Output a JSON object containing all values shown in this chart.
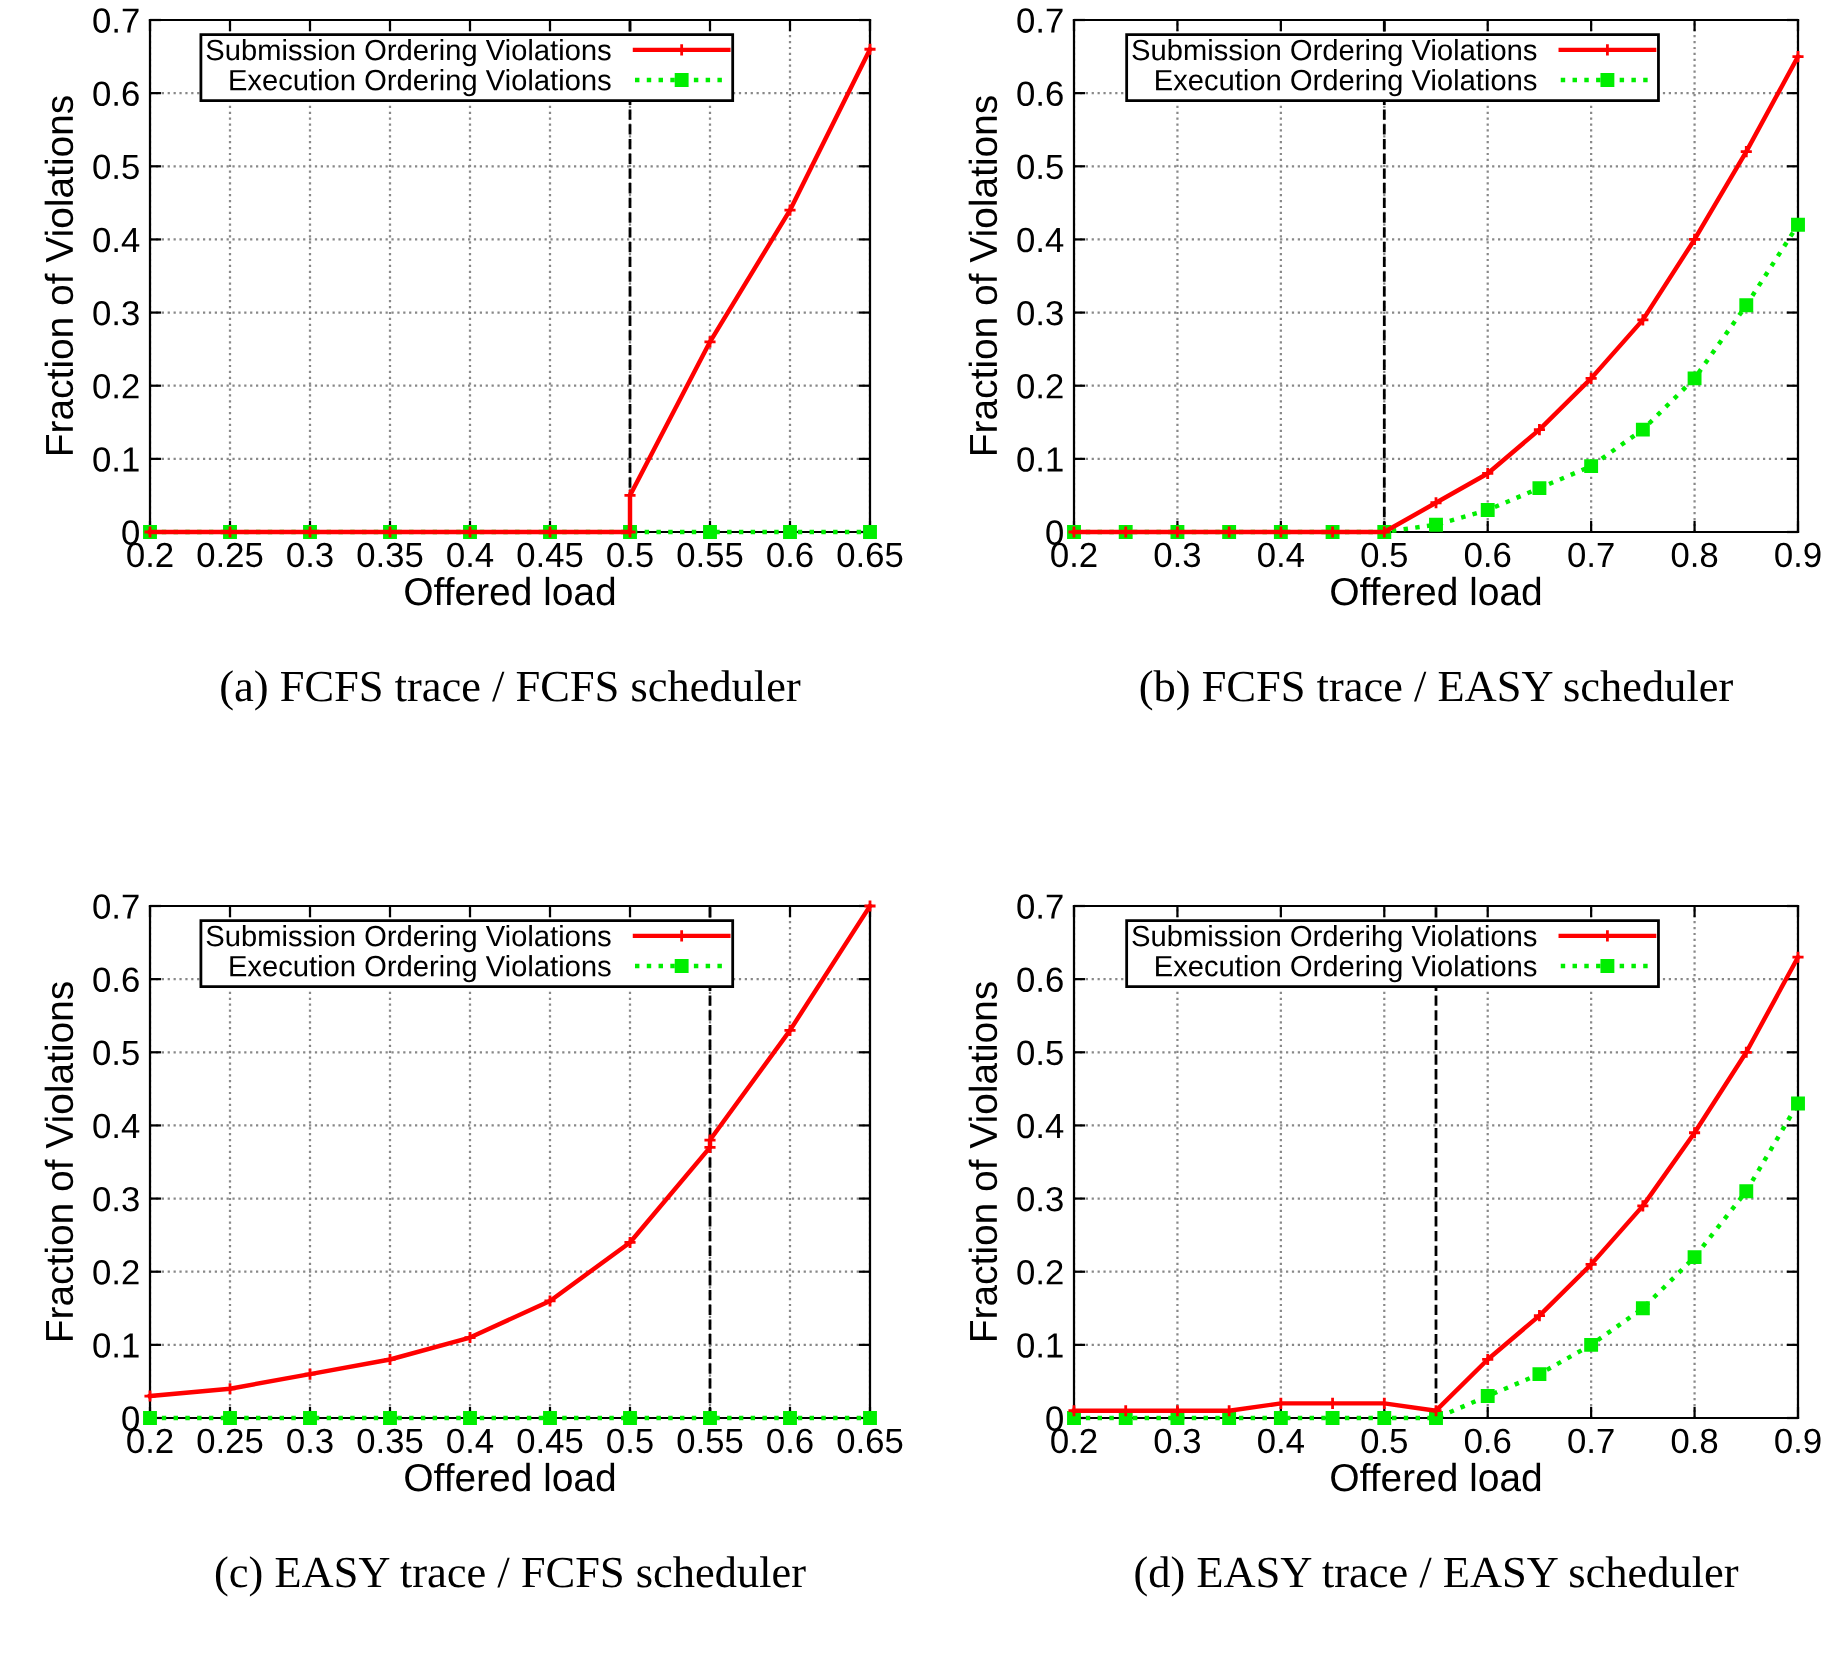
{
  "chart_data": [
    {
      "type": "line",
      "title": "(a) FCFS trace / FCFS scheduler",
      "xlabel": "Offered load",
      "ylabel": "Fraction of Violations",
      "xlim": [
        0.2,
        0.65
      ],
      "ylim": [
        0,
        0.7
      ],
      "xticks": [
        0.2,
        0.25,
        0.3,
        0.35,
        0.4,
        0.45,
        0.5,
        0.55,
        0.6,
        0.65
      ],
      "yticks": [
        0,
        0.1,
        0.2,
        0.3,
        0.4,
        0.5,
        0.6,
        0.7
      ],
      "grid": true,
      "legend": "top",
      "ref_lines": [
        {
          "axis": "x",
          "value": 0.5,
          "color": "#000000",
          "line_style": "dashed"
        }
      ],
      "series": [
        {
          "name": "Submission Ordering Violations",
          "color": "#ff0000",
          "marker": "cross",
          "line_style": "solid",
          "x": [
            0.2,
            0.25,
            0.3,
            0.35,
            0.4,
            0.45,
            0.5,
            0.5,
            0.55,
            0.6,
            0.65
          ],
          "values": [
            0,
            0,
            0,
            0,
            0,
            0,
            0,
            0.05,
            0.26,
            0.44,
            0.66
          ]
        },
        {
          "name": "Execution Ordering Violations",
          "color": "#00ee00",
          "marker": "square",
          "line_style": "dotted",
          "x": [
            0.2,
            0.25,
            0.3,
            0.35,
            0.4,
            0.45,
            0.5,
            0.55,
            0.6,
            0.65
          ],
          "values": [
            0,
            0,
            0,
            0,
            0,
            0,
            0,
            0,
            0,
            0
          ]
        }
      ]
    },
    {
      "type": "line",
      "title": "(b) FCFS trace / EASY scheduler",
      "xlabel": "Offered load",
      "ylabel": "Fraction of Violations",
      "xlim": [
        0.2,
        0.9
      ],
      "ylim": [
        0,
        0.7
      ],
      "xticks": [
        0.2,
        0.3,
        0.4,
        0.5,
        0.6,
        0.7,
        0.8,
        0.9
      ],
      "yticks": [
        0,
        0.1,
        0.2,
        0.3,
        0.4,
        0.5,
        0.6,
        0.7
      ],
      "grid": true,
      "legend": "top",
      "ref_lines": [
        {
          "axis": "x",
          "value": 0.5,
          "color": "#000000",
          "line_style": "dashed"
        }
      ],
      "series": [
        {
          "name": "Submission Ordering Violations",
          "color": "#ff0000",
          "marker": "cross",
          "line_style": "solid",
          "x": [
            0.2,
            0.25,
            0.3,
            0.35,
            0.4,
            0.45,
            0.5,
            0.55,
            0.6,
            0.65,
            0.7,
            0.75,
            0.8,
            0.85,
            0.9
          ],
          "values": [
            0,
            0,
            0,
            0,
            0,
            0,
            0,
            0.04,
            0.08,
            0.14,
            0.21,
            0.29,
            0.4,
            0.52,
            0.65
          ]
        },
        {
          "name": "Execution Ordering Violations",
          "color": "#00ee00",
          "marker": "square",
          "line_style": "dotted",
          "x": [
            0.2,
            0.25,
            0.3,
            0.35,
            0.4,
            0.45,
            0.5,
            0.55,
            0.6,
            0.65,
            0.7,
            0.75,
            0.8,
            0.85,
            0.9
          ],
          "values": [
            0,
            0,
            0,
            0,
            0,
            0,
            0,
            0.01,
            0.03,
            0.06,
            0.09,
            0.14,
            0.21,
            0.31,
            0.42
          ]
        }
      ]
    },
    {
      "type": "line",
      "title": "(c) EASY trace / FCFS scheduler",
      "xlabel": "Offered load",
      "ylabel": "Fraction of Violations",
      "xlim": [
        0.2,
        0.65
      ],
      "ylim": [
        0,
        0.7
      ],
      "xticks": [
        0.2,
        0.25,
        0.3,
        0.35,
        0.4,
        0.45,
        0.5,
        0.55,
        0.6,
        0.65
      ],
      "yticks": [
        0,
        0.1,
        0.2,
        0.3,
        0.4,
        0.5,
        0.6,
        0.7
      ],
      "grid": true,
      "legend": "top",
      "ref_lines": [
        {
          "axis": "x",
          "value": 0.55,
          "color": "#000000",
          "line_style": "dashed"
        }
      ],
      "series": [
        {
          "name": "Submission Ordering Violations",
          "color": "#ff0000",
          "marker": "cross",
          "line_style": "solid",
          "x": [
            0.2,
            0.25,
            0.3,
            0.35,
            0.4,
            0.45,
            0.5,
            0.55,
            0.55,
            0.6,
            0.65
          ],
          "values": [
            0.03,
            0.04,
            0.06,
            0.08,
            0.11,
            0.16,
            0.24,
            0.37,
            0.38,
            0.53,
            0.7
          ]
        },
        {
          "name": "Execution Ordering Violations",
          "color": "#00ee00",
          "marker": "square",
          "line_style": "dotted",
          "x": [
            0.2,
            0.25,
            0.3,
            0.35,
            0.4,
            0.45,
            0.5,
            0.55,
            0.6,
            0.65
          ],
          "values": [
            0,
            0,
            0,
            0,
            0,
            0,
            0,
            0,
            0,
            0
          ]
        }
      ]
    },
    {
      "type": "line",
      "title": "(d) EASY trace / EASY scheduler",
      "xlabel": "Offered load",
      "ylabel": "Fraction of Violations",
      "xlim": [
        0.2,
        0.9
      ],
      "ylim": [
        0,
        0.7
      ],
      "xticks": [
        0.2,
        0.3,
        0.4,
        0.5,
        0.6,
        0.7,
        0.8,
        0.9
      ],
      "yticks": [
        0,
        0.1,
        0.2,
        0.3,
        0.4,
        0.5,
        0.6,
        0.7
      ],
      "grid": true,
      "legend": "top",
      "ref_lines": [
        {
          "axis": "x",
          "value": 0.55,
          "color": "#000000",
          "line_style": "dashed"
        }
      ],
      "series": [
        {
          "name": "Submission Orderihg Violations",
          "color": "#ff0000",
          "marker": "cross",
          "line_style": "solid",
          "x": [
            0.2,
            0.25,
            0.3,
            0.35,
            0.4,
            0.45,
            0.5,
            0.55,
            0.6,
            0.65,
            0.7,
            0.75,
            0.8,
            0.85,
            0.9
          ],
          "values": [
            0.01,
            0.01,
            0.01,
            0.01,
            0.02,
            0.02,
            0.02,
            0.01,
            0.08,
            0.14,
            0.21,
            0.29,
            0.39,
            0.5,
            0.63
          ]
        },
        {
          "name": "Execution Ordering Violations",
          "color": "#00ee00",
          "marker": "square",
          "line_style": "dotted",
          "x": [
            0.2,
            0.25,
            0.3,
            0.35,
            0.4,
            0.45,
            0.5,
            0.55,
            0.6,
            0.65,
            0.7,
            0.75,
            0.8,
            0.85,
            0.9
          ],
          "values": [
            0,
            0,
            0,
            0,
            0,
            0,
            0,
            0,
            0.03,
            0.06,
            0.1,
            0.15,
            0.22,
            0.31,
            0.43
          ]
        }
      ]
    }
  ]
}
